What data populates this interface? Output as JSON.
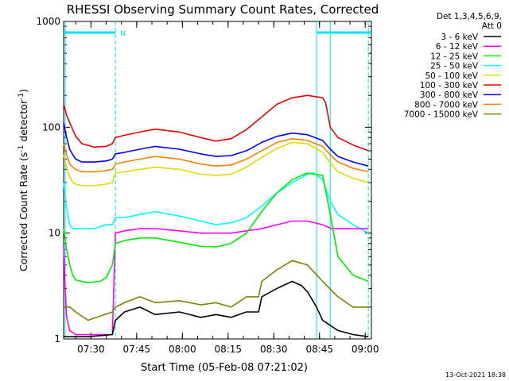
{
  "footer": {
    "date_stamp": "13-Oct-2021 18:38"
  },
  "chart_data": {
    "type": "line",
    "title": "RHESSI Observing Summary Count Rates, Corrected",
    "xlabel": "Start Time (05-Feb-08 07:21:02)",
    "ylabel": "Corrected Count Rate (s",
    "ylabel_sup": "-1",
    "ylabel_tail": " detector",
    "ylabel_close": ")",
    "y_scale": "log",
    "ylim": [
      1,
      1000
    ],
    "y_ticks": [
      {
        "value": 1,
        "label": "1"
      },
      {
        "value": 10,
        "label": "10"
      },
      {
        "value": 100,
        "label": "100"
      },
      {
        "value": 1000,
        "label": "1000"
      }
    ],
    "x_unit": "minutes after 07:21:02",
    "xlim": [
      0,
      101
    ],
    "x_ticks": [
      {
        "value": 8.97,
        "label": "07:30"
      },
      {
        "value": 23.97,
        "label": "07:45"
      },
      {
        "value": 38.97,
        "label": "08:00"
      },
      {
        "value": 53.97,
        "label": "08:15"
      },
      {
        "value": 68.97,
        "label": "08:30"
      },
      {
        "value": 83.97,
        "label": "08:45"
      },
      {
        "value": 98.97,
        "label": "09:00"
      }
    ],
    "legend": {
      "position": "right",
      "header": [
        "Det 1,3,4,5,6,9,",
        "Att 0"
      ],
      "entries": [
        {
          "name": "3 - 6 keV",
          "color": "#000000"
        },
        {
          "name": "6 - 12 keV",
          "color": "#ff00ff"
        },
        {
          "name": "12 - 25 keV",
          "color": "#00ee00"
        },
        {
          "name": "25 - 50 keV",
          "color": "#00ffff"
        },
        {
          "name": "50 - 100 keV",
          "color": "#dddd00"
        },
        {
          "name": "100 - 300 keV",
          "color": "#ee0000"
        },
        {
          "name": "300 - 800 keV",
          "color": "#0000ff"
        },
        {
          "name": "800 - 7000 keV",
          "color": "#ff8000"
        },
        {
          "name": "7000 - 15000 keV",
          "color": "#808000"
        }
      ]
    },
    "annotations": {
      "night_marker_label": "N",
      "night_intervals": [
        [
          0,
          17
        ],
        [
          83,
          101
        ]
      ],
      "vertical_lines_solid": [
        0.5,
        83,
        87.5
      ],
      "vertical_lines_dashed": [
        17,
        100
      ]
    },
    "series": [
      {
        "name": "100 - 300 keV",
        "color": "#ee0000",
        "x": [
          0,
          1,
          2,
          3,
          4,
          6,
          10,
          14,
          16,
          17,
          20,
          25,
          30,
          38,
          45,
          50,
          55,
          60,
          65,
          70,
          75,
          80,
          85,
          86,
          87.5,
          90,
          95,
          100
        ],
        "y": [
          165,
          130,
          110,
          95,
          82,
          70,
          65,
          66,
          70,
          80,
          84,
          90,
          96,
          90,
          80,
          74,
          78,
          95,
          125,
          165,
          190,
          200,
          190,
          170,
          100,
          80,
          68,
          60
        ]
      },
      {
        "name": "300 - 800 keV",
        "color": "#0000ff",
        "x": [
          0,
          1,
          2,
          3,
          4,
          6,
          10,
          14,
          16,
          17,
          20,
          25,
          30,
          38,
          45,
          50,
          55,
          60,
          65,
          70,
          75,
          80,
          85,
          87.5,
          90,
          95,
          100
        ],
        "y": [
          110,
          80,
          62,
          55,
          50,
          47,
          47,
          48,
          50,
          56,
          58,
          62,
          66,
          62,
          56,
          53,
          54,
          60,
          72,
          82,
          88,
          85,
          75,
          62,
          53,
          47,
          43
        ]
      },
      {
        "name": "800 - 7000 keV",
        "color": "#ff8000",
        "x": [
          0,
          1,
          2,
          3,
          4,
          6,
          10,
          14,
          16,
          17,
          20,
          25,
          30,
          38,
          45,
          50,
          55,
          60,
          65,
          70,
          75,
          80,
          85,
          87.5,
          90,
          95,
          100
        ],
        "y": [
          70,
          55,
          45,
          42,
          40,
          38,
          38,
          39,
          40,
          45,
          47,
          50,
          53,
          50,
          45,
          43,
          44,
          50,
          60,
          72,
          78,
          75,
          66,
          55,
          47,
          41,
          38
        ]
      },
      {
        "name": "50 - 100 keV",
        "color": "#dddd00",
        "x": [
          0,
          1,
          2,
          3,
          4,
          6,
          10,
          14,
          16,
          17,
          20,
          25,
          30,
          38,
          45,
          50,
          55,
          60,
          65,
          70,
          75,
          80,
          85,
          87.5,
          90,
          95,
          100
        ],
        "y": [
          55,
          42,
          34,
          30,
          29,
          28,
          28,
          29,
          30,
          37,
          38,
          40,
          42,
          40,
          36,
          35,
          36,
          42,
          52,
          63,
          72,
          70,
          58,
          46,
          38,
          33,
          30
        ]
      },
      {
        "name": "25 - 50 keV",
        "color": "#00ffff",
        "x": [
          0,
          1,
          2,
          3,
          4,
          6,
          10,
          14,
          16,
          17,
          20,
          25,
          30,
          38,
          45,
          50,
          55,
          60,
          65,
          70,
          75,
          80,
          82,
          85,
          87.5,
          90,
          95,
          100
        ],
        "y": [
          30,
          17,
          12,
          11,
          11,
          11,
          11,
          12,
          12,
          14,
          14,
          15,
          16,
          14.5,
          13,
          12,
          12.5,
          14,
          18,
          24,
          30,
          36,
          37,
          32,
          20,
          15,
          12,
          10
        ]
      },
      {
        "name": "6 - 12 keV",
        "color": "#ff00ff",
        "x": [
          0,
          0.5,
          1,
          2,
          4,
          8,
          14,
          16,
          17,
          20,
          25,
          30,
          38,
          45,
          50,
          55,
          60,
          65,
          70,
          75,
          80,
          85,
          88,
          92,
          95,
          100
        ],
        "y": [
          8,
          3,
          1.6,
          1.2,
          1.1,
          1.1,
          1.1,
          1.1,
          10,
          10.5,
          11,
          11,
          10.5,
          10,
          10,
          10,
          10.5,
          11,
          12,
          13,
          13,
          12,
          11,
          11,
          11,
          11
        ]
      },
      {
        "name": "12 - 25 keV",
        "color": "#00ee00",
        "x": [
          0,
          1,
          2,
          3,
          4,
          6,
          8,
          12,
          14,
          16,
          17,
          20,
          25,
          30,
          38,
          45,
          50,
          55,
          60,
          65,
          70,
          75,
          80,
          85,
          87.5,
          90,
          95,
          100
        ],
        "y": [
          11,
          7,
          5,
          4,
          3.6,
          3.5,
          3.4,
          3.5,
          3.8,
          5,
          8,
          8.5,
          9,
          9,
          8.2,
          7.5,
          7.4,
          8,
          10,
          16,
          24,
          32,
          37,
          35,
          15,
          6,
          4,
          3.5
        ]
      },
      {
        "name": "3 - 6 keV",
        "color": "#000000",
        "x": [
          0,
          2,
          4,
          8,
          16,
          17,
          20,
          25,
          30,
          38,
          45,
          50,
          55,
          60,
          64,
          65,
          70,
          75,
          78,
          80,
          83,
          85,
          90,
          95,
          100
        ],
        "y": [
          1.05,
          1.05,
          1.05,
          1.05,
          1.1,
          1.5,
          1.8,
          2,
          1.7,
          1.8,
          1.6,
          1.7,
          1.6,
          1.8,
          1.8,
          2.5,
          3,
          3.5,
          3.2,
          2.8,
          2,
          1.5,
          1.2,
          1.1,
          1.05
        ]
      },
      {
        "name": "7000 - 15000 keV",
        "color": "#808000",
        "x": [
          0,
          2,
          4,
          8,
          16,
          17,
          20,
          25,
          30,
          38,
          45,
          50,
          55,
          60,
          64,
          65,
          70,
          75,
          80,
          85,
          90,
          95,
          100
        ],
        "y": [
          2,
          2,
          1.8,
          1.5,
          1.8,
          2,
          2.2,
          2.5,
          2.2,
          2.3,
          2.1,
          2.2,
          2,
          2.5,
          2.5,
          3.5,
          4.5,
          5.5,
          5,
          3.5,
          2.5,
          2,
          2
        ]
      }
    ]
  }
}
